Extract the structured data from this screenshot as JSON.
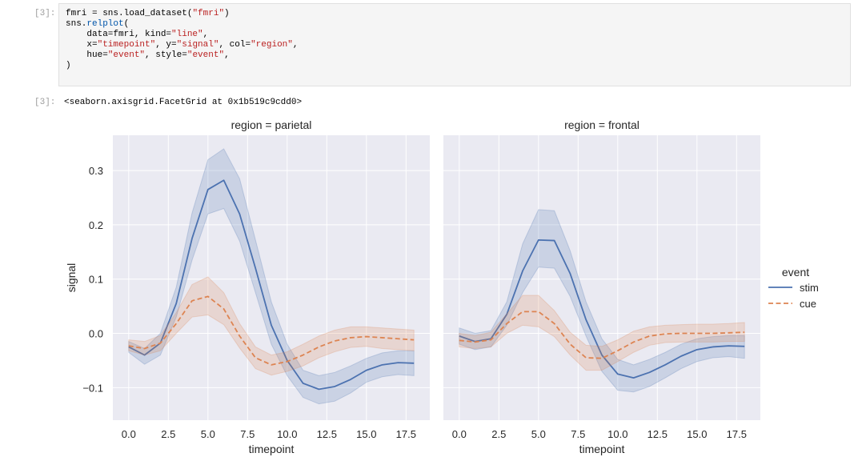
{
  "cell": {
    "in_prompt": "[3]:",
    "out_prompt": "[3]:",
    "code_lines": [
      [
        {
          "t": "fmri = sns.load_dataset(",
          "c": ""
        },
        {
          "t": "\"fmri\"",
          "c": "str"
        },
        {
          "t": ")",
          "c": ""
        }
      ],
      [
        {
          "t": "sns.",
          "c": ""
        },
        {
          "t": "relplot",
          "c": "attr"
        },
        {
          "t": "(",
          "c": ""
        }
      ],
      [
        {
          "t": "    data=fmri, kind=",
          "c": ""
        },
        {
          "t": "\"line\"",
          "c": "str"
        },
        {
          "t": ",",
          "c": ""
        }
      ],
      [
        {
          "t": "    x=",
          "c": ""
        },
        {
          "t": "\"timepoint\"",
          "c": "str"
        },
        {
          "t": ", y=",
          "c": ""
        },
        {
          "t": "\"signal\"",
          "c": "str"
        },
        {
          "t": ", col=",
          "c": ""
        },
        {
          "t": "\"region\"",
          "c": "str"
        },
        {
          "t": ",",
          "c": ""
        }
      ],
      [
        {
          "t": "    hue=",
          "c": ""
        },
        {
          "t": "\"event\"",
          "c": "str"
        },
        {
          "t": ", style=",
          "c": ""
        },
        {
          "t": "\"event\"",
          "c": "str"
        },
        {
          "t": ",",
          "c": ""
        }
      ],
      [
        {
          "t": ")",
          "c": ""
        }
      ]
    ],
    "output_text": "<seaborn.axisgrid.FacetGrid at 0x1b519c9cdd0>"
  },
  "colors": {
    "stim": "#4c72b0",
    "cue": "#dd8452",
    "panel_bg": "#eaeaf2",
    "grid": "#ffffff"
  },
  "chart_data": {
    "type": "line",
    "ylabel": "signal",
    "xlabel": "timepoint",
    "xlim": [
      -1,
      19
    ],
    "ylim": [
      -0.16,
      0.365
    ],
    "xticks": [
      0,
      2.5,
      5,
      7.5,
      10,
      12.5,
      15,
      17.5
    ],
    "xtick_labels": [
      "0.0",
      "2.5",
      "5.0",
      "7.5",
      "10.0",
      "12.5",
      "15.0",
      "17.5"
    ],
    "yticks": [
      -0.1,
      0,
      0.1,
      0.2,
      0.3
    ],
    "ytick_labels": [
      "−0.1",
      "0.0",
      "0.1",
      "0.2",
      "0.3"
    ],
    "legend": {
      "title": "event",
      "entries": [
        "stim",
        "cue"
      ],
      "placement": "right"
    },
    "x": [
      0,
      1,
      2,
      3,
      4,
      5,
      6,
      7,
      8,
      9,
      10,
      11,
      12,
      13,
      14,
      15,
      16,
      17,
      18
    ],
    "facets": [
      {
        "title": "region = parietal",
        "series": [
          {
            "name": "stim",
            "dash": false,
            "values": [
              -0.025,
              -0.04,
              -0.018,
              0.055,
              0.175,
              0.265,
              0.282,
              0.22,
              0.12,
              0.015,
              -0.05,
              -0.092,
              -0.103,
              -0.098,
              -0.085,
              -0.068,
              -0.058,
              -0.054,
              -0.055
            ],
            "ci": [
              [
                -0.035,
                -0.015
              ],
              [
                -0.057,
                -0.028
              ],
              [
                -0.04,
                0.0
              ],
              [
                0.03,
                0.085
              ],
              [
                0.135,
                0.222
              ],
              [
                0.22,
                0.32
              ],
              [
                0.23,
                0.34
              ],
              [
                0.17,
                0.285
              ],
              [
                0.075,
                0.172
              ],
              [
                -0.02,
                0.058
              ],
              [
                -0.078,
                -0.02
              ],
              [
                -0.118,
                -0.068
              ],
              [
                -0.13,
                -0.078
              ],
              [
                -0.125,
                -0.072
              ],
              [
                -0.11,
                -0.06
              ],
              [
                -0.09,
                -0.046
              ],
              [
                -0.08,
                -0.036
              ],
              [
                -0.076,
                -0.032
              ],
              [
                -0.078,
                -0.032
              ]
            ]
          },
          {
            "name": "cue",
            "dash": true,
            "values": [
              -0.023,
              -0.028,
              -0.018,
              0.018,
              0.06,
              0.068,
              0.045,
              -0.005,
              -0.045,
              -0.058,
              -0.052,
              -0.04,
              -0.025,
              -0.014,
              -0.008,
              -0.006,
              -0.008,
              -0.01,
              -0.012
            ],
            "ci": [
              [
                -0.032,
                -0.012
              ],
              [
                -0.04,
                -0.015
              ],
              [
                -0.032,
                -0.004
              ],
              [
                0.0,
                0.038
              ],
              [
                0.03,
                0.09
              ],
              [
                0.034,
                0.104
              ],
              [
                0.016,
                0.075
              ],
              [
                -0.027,
                0.018
              ],
              [
                -0.065,
                -0.025
              ],
              [
                -0.077,
                -0.04
              ],
              [
                -0.07,
                -0.034
              ],
              [
                -0.06,
                -0.02
              ],
              [
                -0.045,
                -0.005
              ],
              [
                -0.034,
                0.006
              ],
              [
                -0.026,
                0.012
              ],
              [
                -0.024,
                0.012
              ],
              [
                -0.028,
                0.01
              ],
              [
                -0.03,
                0.008
              ],
              [
                -0.032,
                0.006
              ]
            ]
          }
        ]
      },
      {
        "title": "region = frontal",
        "series": [
          {
            "name": "stim",
            "dash": false,
            "values": [
              -0.005,
              -0.015,
              -0.01,
              0.035,
              0.115,
              0.172,
              0.171,
              0.11,
              0.025,
              -0.04,
              -0.075,
              -0.082,
              -0.072,
              -0.058,
              -0.042,
              -0.03,
              -0.025,
              -0.023,
              -0.024
            ],
            "ci": [
              [
                -0.02,
                0.01
              ],
              [
                -0.03,
                0.0
              ],
              [
                -0.025,
                0.005
              ],
              [
                0.015,
                0.058
              ],
              [
                0.075,
                0.165
              ],
              [
                0.122,
                0.228
              ],
              [
                0.12,
                0.226
              ],
              [
                0.068,
                0.152
              ],
              [
                -0.005,
                0.058
              ],
              [
                -0.07,
                -0.01
              ],
              [
                -0.105,
                -0.048
              ],
              [
                -0.108,
                -0.058
              ],
              [
                -0.098,
                -0.048
              ],
              [
                -0.082,
                -0.035
              ],
              [
                -0.065,
                -0.02
              ],
              [
                -0.052,
                -0.01
              ],
              [
                -0.045,
                -0.006
              ],
              [
                -0.043,
                -0.004
              ],
              [
                -0.046,
                -0.004
              ]
            ]
          },
          {
            "name": "cue",
            "dash": true,
            "values": [
              -0.013,
              -0.016,
              -0.012,
              0.018,
              0.04,
              0.04,
              0.018,
              -0.02,
              -0.045,
              -0.046,
              -0.032,
              -0.016,
              -0.005,
              -0.001,
              0.0,
              0.0,
              0.0,
              0.001,
              0.002
            ],
            "ci": [
              [
                -0.025,
                0.0
              ],
              [
                -0.028,
                -0.004
              ],
              [
                -0.025,
                0.002
              ],
              [
                0.0,
                0.036
              ],
              [
                0.015,
                0.07
              ],
              [
                0.012,
                0.07
              ],
              [
                -0.006,
                0.042
              ],
              [
                -0.04,
                0.002
              ],
              [
                -0.068,
                -0.022
              ],
              [
                -0.068,
                -0.024
              ],
              [
                -0.052,
                -0.012
              ],
              [
                -0.035,
                0.004
              ],
              [
                -0.022,
                0.012
              ],
              [
                -0.017,
                0.015
              ],
              [
                -0.016,
                0.016
              ],
              [
                -0.016,
                0.017
              ],
              [
                -0.016,
                0.017
              ],
              [
                -0.015,
                0.018
              ],
              [
                -0.015,
                0.02
              ]
            ]
          }
        ]
      }
    ]
  }
}
